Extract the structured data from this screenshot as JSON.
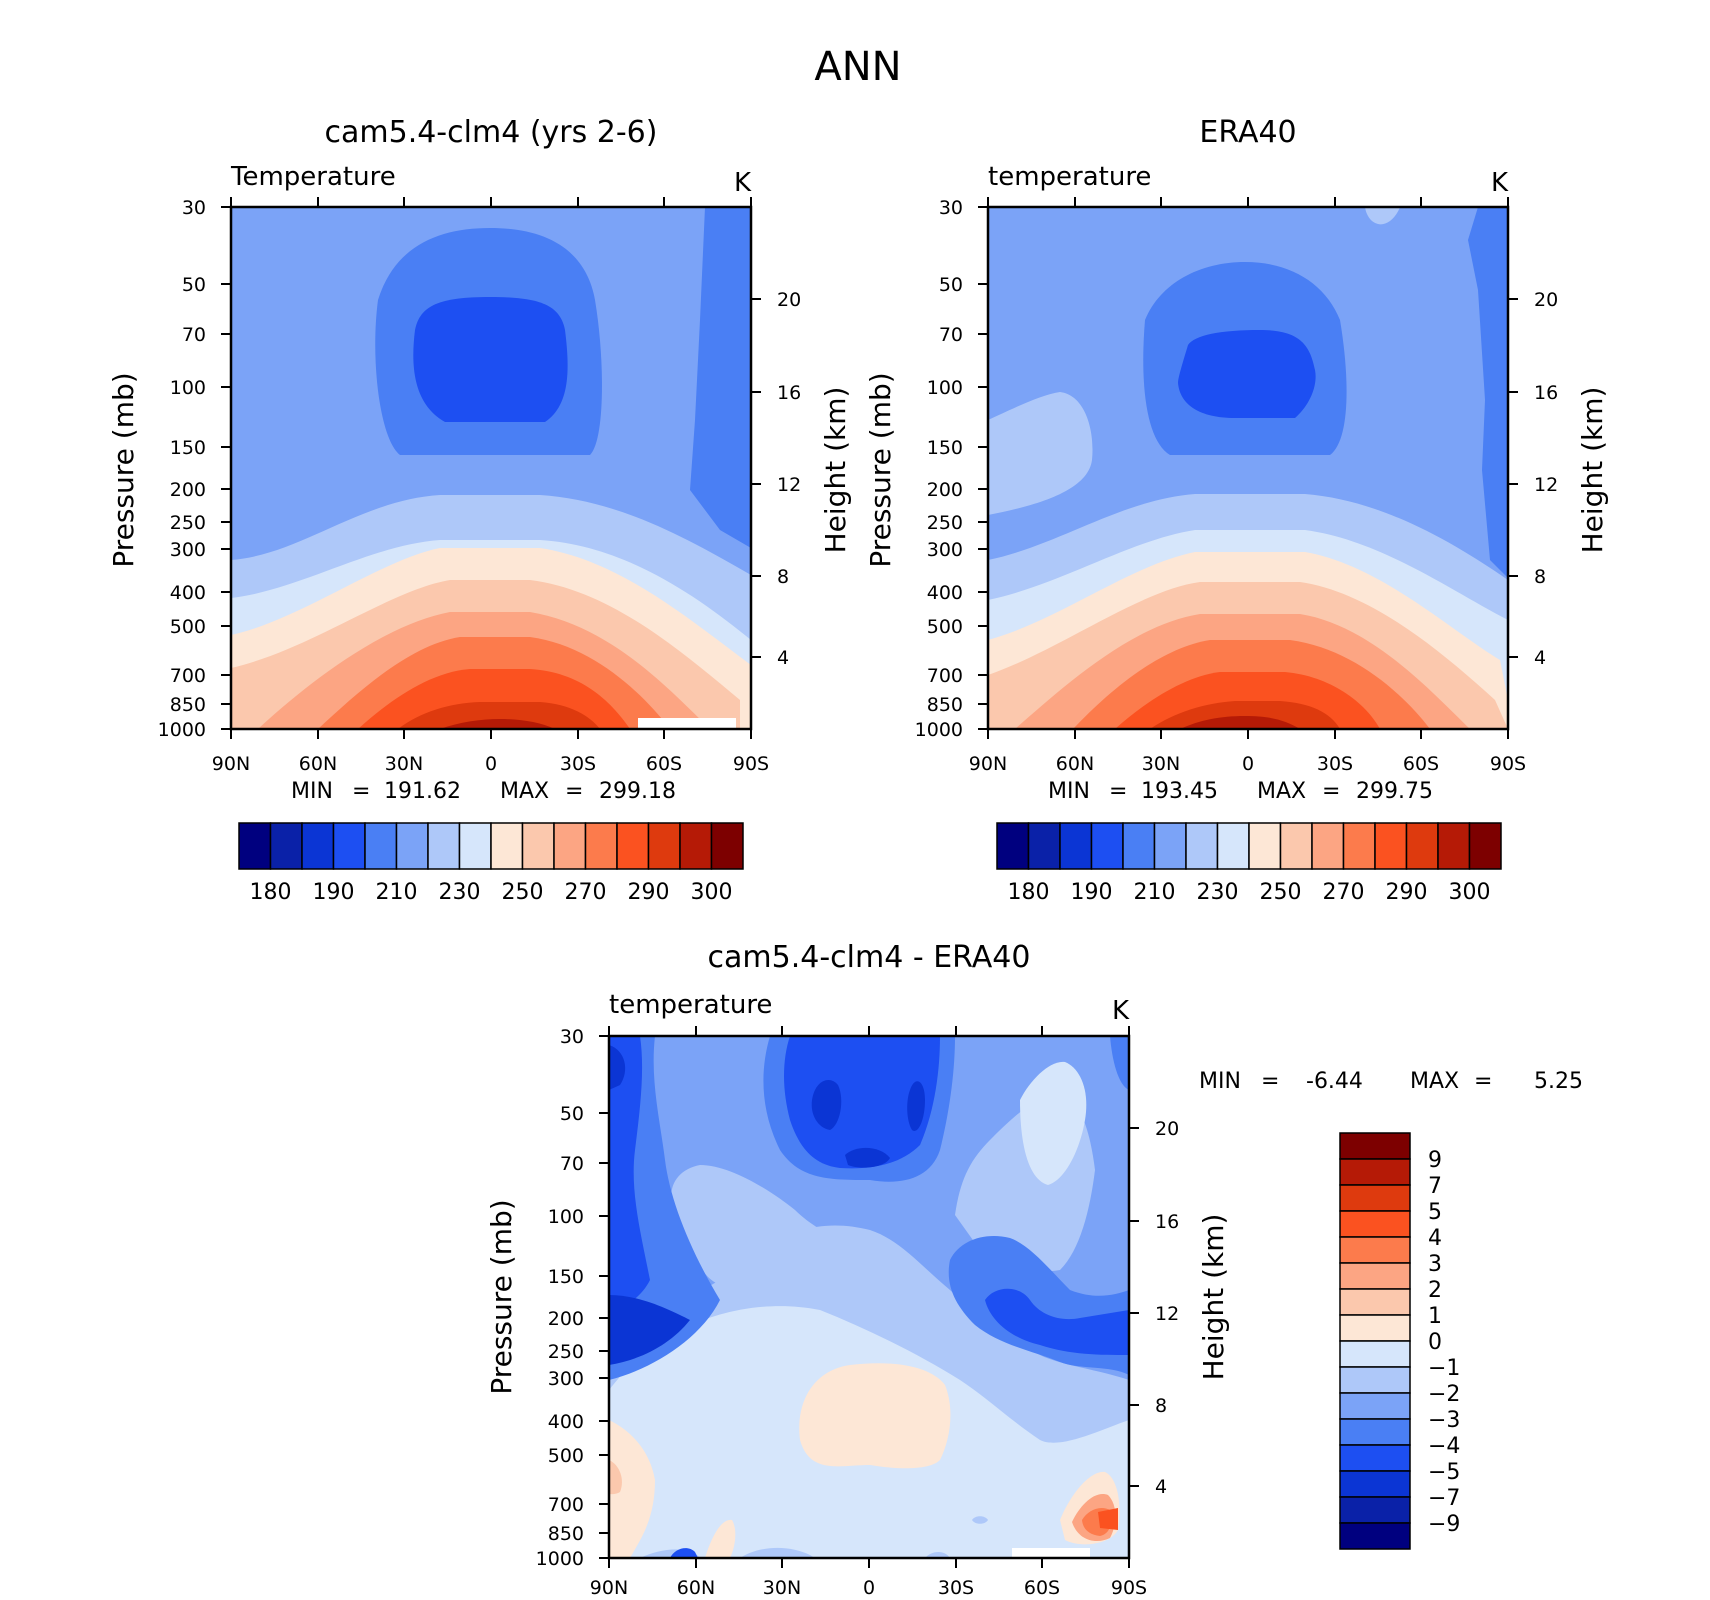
{
  "figure": {
    "title": "ANN"
  },
  "chart_data": [
    {
      "type": "heatmap",
      "panel_title": "cam5.4-clm4 (yrs 2-6)",
      "variable": "Temperature",
      "units": "K",
      "ylabel": "Pressure (mb)",
      "ylabel_right": "Height (km)",
      "x_ticks": [
        "90N",
        "60N",
        "30N",
        "0",
        "30S",
        "60S",
        "90S"
      ],
      "y_ticks": [
        30,
        50,
        70,
        100,
        150,
        200,
        250,
        300,
        400,
        500,
        700,
        850,
        1000
      ],
      "y_ticks_right": [
        20,
        16,
        12,
        8,
        4
      ],
      "ylim": [
        1000,
        30
      ],
      "xlim": [
        "90N",
        "90S"
      ],
      "min_label": "MIN",
      "min_value": "191.62",
      "max_label": "MAX",
      "max_value": "299.18",
      "colorbar": {
        "orientation": "horizontal",
        "colors": [
          "#00007f",
          "#0a21a8",
          "#0b35d4",
          "#1d4ff2",
          "#4a7ff4",
          "#7ba3f7",
          "#aec8f9",
          "#d6e6fb",
          "#fde7d6",
          "#fbc8ad",
          "#fca583",
          "#fc7b4c",
          "#fb5220",
          "#de3a0e",
          "#b51a06",
          "#7d0000"
        ],
        "labels": [
          "180",
          "190",
          "210",
          "230",
          "250",
          "270",
          "290",
          "300"
        ]
      },
      "approx_profile": {
        "note_levels_mb": [
          1000,
          700,
          500,
          300,
          200,
          100,
          70,
          30
        ],
        "tropics_K": [
          298,
          283,
          266,
          240,
          222,
          198,
          193,
          212
        ],
        "midlat_K": [
          282,
          270,
          254,
          225,
          219,
          215,
          214,
          213
        ],
        "polar_K": [
          260,
          255,
          245,
          225,
          217,
          214,
          213,
          212
        ]
      }
    },
    {
      "type": "heatmap",
      "panel_title": "ERA40",
      "variable": "temperature",
      "units": "K",
      "ylabel": "Pressure (mb)",
      "ylabel_right": "Height (km)",
      "x_ticks": [
        "90N",
        "60N",
        "30N",
        "0",
        "30S",
        "60S",
        "90S"
      ],
      "y_ticks": [
        30,
        50,
        70,
        100,
        150,
        200,
        250,
        300,
        400,
        500,
        700,
        850,
        1000
      ],
      "y_ticks_right": [
        20,
        16,
        12,
        8,
        4
      ],
      "ylim": [
        1000,
        30
      ],
      "xlim": [
        "90N",
        "90S"
      ],
      "min_label": "MIN",
      "min_value": "193.45",
      "max_label": "MAX",
      "max_value": "299.75",
      "colorbar": {
        "orientation": "horizontal",
        "colors": [
          "#00007f",
          "#0a21a8",
          "#0b35d4",
          "#1d4ff2",
          "#4a7ff4",
          "#7ba3f7",
          "#aec8f9",
          "#d6e6fb",
          "#fde7d6",
          "#fbc8ad",
          "#fca583",
          "#fc7b4c",
          "#fb5220",
          "#de3a0e",
          "#b51a06",
          "#7d0000"
        ],
        "labels": [
          "180",
          "190",
          "210",
          "230",
          "250",
          "270",
          "290",
          "300"
        ]
      }
    },
    {
      "type": "heatmap",
      "panel_title": "cam5.4-clm4 - ERA40",
      "variable": "temperature",
      "units": "K",
      "ylabel": "Pressure (mb)",
      "ylabel_right": "Height (km)",
      "x_ticks": [
        "90N",
        "60N",
        "30N",
        "0",
        "30S",
        "60S",
        "90S"
      ],
      "y_ticks": [
        30,
        50,
        70,
        100,
        150,
        200,
        250,
        300,
        400,
        500,
        700,
        850,
        1000
      ],
      "y_ticks_right": [
        20,
        16,
        12,
        8,
        4
      ],
      "ylim": [
        1000,
        30
      ],
      "xlim": [
        "90N",
        "90S"
      ],
      "min_label": "MIN",
      "min_value": "-6.44",
      "max_label": "MAX",
      "max_value": "5.25",
      "colorbar": {
        "orientation": "vertical",
        "colors": [
          "#00007f",
          "#0a21a8",
          "#0b35d4",
          "#1d4ff2",
          "#4a7ff4",
          "#7ba3f7",
          "#aec8f9",
          "#d6e6fb",
          "#fde7d6",
          "#fbc8ad",
          "#fca583",
          "#fc7b4c",
          "#fb5220",
          "#de3a0e",
          "#b51a06",
          "#7d0000"
        ],
        "labels": [
          "9",
          "7",
          "5",
          "4",
          "3",
          "2",
          "1",
          "0",
          "−1",
          "−2",
          "−3",
          "−4",
          "−5",
          "−7",
          "−9"
        ]
      }
    }
  ]
}
